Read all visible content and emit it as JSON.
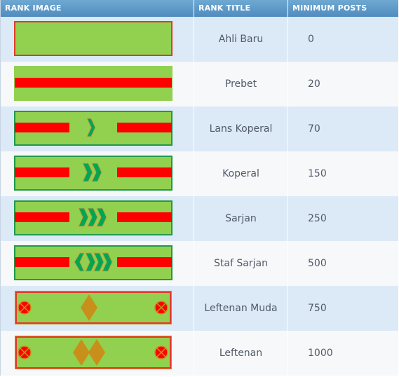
{
  "columns": {
    "image": "RANK IMAGE",
    "title": "RANK TITLE",
    "posts": "MINIMUM POSTS"
  },
  "colors": {
    "badge_green": "#92d050",
    "stripe_red": "#ff0000",
    "chevron_green": "#00a651",
    "diamond_gold": "#c8901a",
    "header_blue": "#5b9bc9"
  },
  "ranks": [
    {
      "title": "Ahli Baru",
      "min_posts": "0",
      "badge": "plain"
    },
    {
      "title": "Prebet",
      "min_posts": "20",
      "badge": "stripe"
    },
    {
      "title": "Lans Koperal",
      "min_posts": "70",
      "badge": "chevron-1"
    },
    {
      "title": "Koperal",
      "min_posts": "150",
      "badge": "chevron-2"
    },
    {
      "title": "Sarjan",
      "min_posts": "250",
      "badge": "chevron-3"
    },
    {
      "title": "Staf Sarjan",
      "min_posts": "500",
      "badge": "chevron-3-diamond"
    },
    {
      "title": "Leftenan Muda",
      "min_posts": "750",
      "badge": "officer-1-diamond"
    },
    {
      "title": "Leftenan",
      "min_posts": "1000",
      "badge": "officer-2-diamond"
    }
  ]
}
